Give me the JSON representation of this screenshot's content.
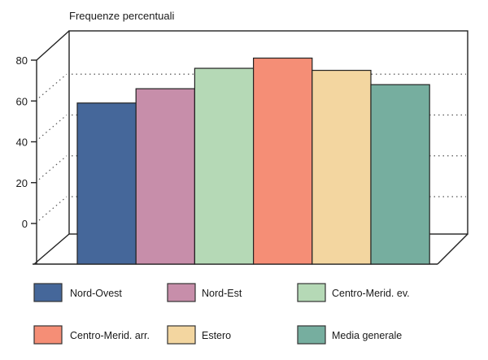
{
  "chart_data": {
    "type": "bar",
    "title": "Frequenze percentuali",
    "ylim": [
      -20,
      80
    ],
    "yticks": [
      0,
      20,
      40,
      60,
      80
    ],
    "ytick_labels": [
      "0",
      "20",
      "40",
      "60",
      "80"
    ],
    "grid": true,
    "three_d": true,
    "legend_placement": "bottom",
    "categories": [
      "Nord-Ovest",
      "Nord-Est",
      "Centro-Merid. ev.",
      "Centro-Merid. arr.",
      "Estero",
      "Media generale"
    ],
    "values": [
      59,
      66,
      76,
      81,
      75,
      68
    ],
    "colors": [
      "#45679a",
      "#c78eaa",
      "#b5d9b6",
      "#f58e76",
      "#f3d6a0",
      "#76ae9f"
    ]
  }
}
